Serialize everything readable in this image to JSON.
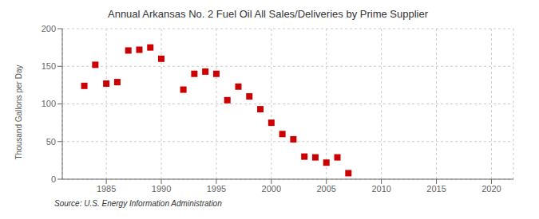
{
  "chart_data": {
    "type": "scatter",
    "title": "Annual Arkansas No. 2 Fuel Oil All Sales/Deliveries by Prime Supplier",
    "ylabel": "Thousand Gallons per Day",
    "source": "Source: U.S. Energy Information Administration",
    "x": [
      1983,
      1984,
      1985,
      1986,
      1987,
      1988,
      1989,
      1990,
      1992,
      1993,
      1994,
      1995,
      1996,
      1997,
      1998,
      1999,
      2000,
      2001,
      2002,
      2003,
      2004,
      2005,
      2006,
      2007
    ],
    "values": [
      124,
      152,
      127,
      129,
      171,
      172,
      175,
      160,
      119,
      140,
      143,
      140,
      105,
      123,
      110,
      93,
      75,
      60,
      53,
      30,
      29,
      22,
      29,
      8
    ],
    "color": "#cc0000",
    "marker": "square",
    "xlim": [
      1981,
      2022
    ],
    "ylim": [
      0,
      200
    ],
    "xticks": [
      1985,
      1990,
      1995,
      2000,
      2005,
      2010,
      2015,
      2020
    ],
    "yticks": [
      0,
      50,
      100,
      150,
      200
    ],
    "grid": true
  }
}
